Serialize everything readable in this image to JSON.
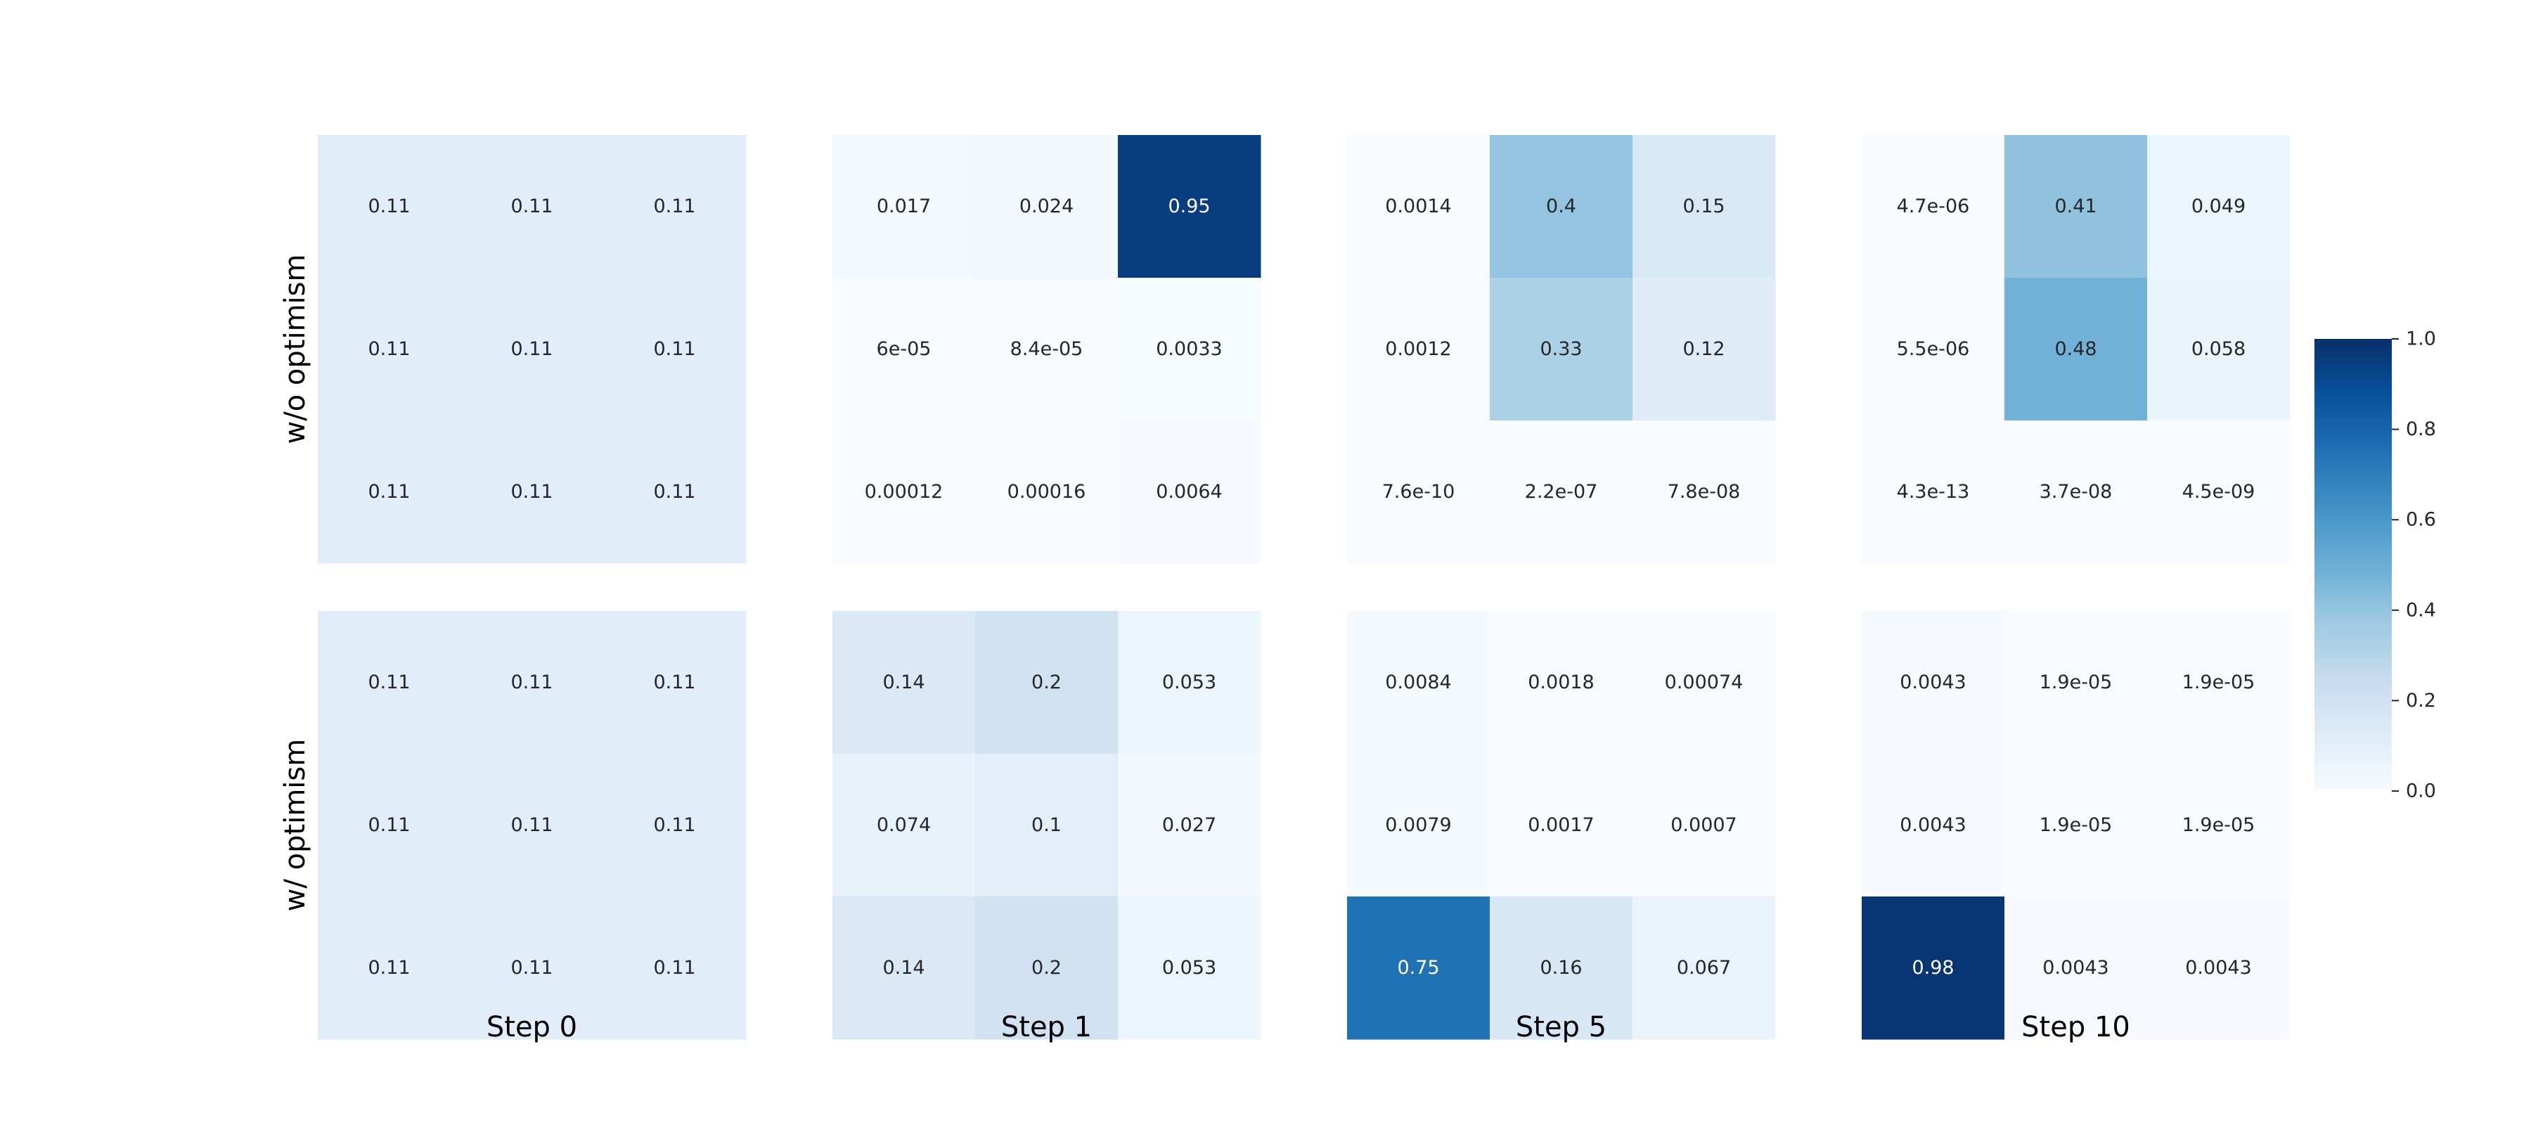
{
  "chart_data": {
    "type": "heatmap",
    "colormap": "Blues",
    "value_range": [
      0,
      1
    ],
    "row_labels": [
      "w/o optimism",
      "w/ optimism"
    ],
    "column_labels": [
      "Step 0",
      "Step 1",
      "Step 5",
      "Step 10"
    ],
    "colorbar": {
      "ticks": [
        "0.0",
        "0.2",
        "0.4",
        "0.6",
        "0.8",
        "1.0"
      ],
      "placement": "right"
    },
    "panels": [
      {
        "row": 0,
        "col": 0,
        "values": [
          [
            0.11,
            0.11,
            0.11
          ],
          [
            0.11,
            0.11,
            0.11
          ],
          [
            0.11,
            0.11,
            0.11
          ]
        ],
        "labels": [
          [
            "0.11",
            "0.11",
            "0.11"
          ],
          [
            "0.11",
            "0.11",
            "0.11"
          ],
          [
            "0.11",
            "0.11",
            "0.11"
          ]
        ]
      },
      {
        "row": 0,
        "col": 1,
        "values": [
          [
            0.017,
            0.024,
            0.95
          ],
          [
            6e-05,
            8.4e-05,
            0.0033
          ],
          [
            0.00012,
            0.00016,
            0.0064
          ]
        ],
        "labels": [
          [
            "0.017",
            "0.024",
            "0.95"
          ],
          [
            "6e-05",
            "8.4e-05",
            "0.0033"
          ],
          [
            "0.00012",
            "0.00016",
            "0.0064"
          ]
        ]
      },
      {
        "row": 0,
        "col": 2,
        "values": [
          [
            0.0014,
            0.4,
            0.15
          ],
          [
            0.0012,
            0.33,
            0.12
          ],
          [
            7.6e-10,
            2.2e-07,
            7.8e-08
          ]
        ],
        "labels": [
          [
            "0.0014",
            "0.4",
            "0.15"
          ],
          [
            "0.0012",
            "0.33",
            "0.12"
          ],
          [
            "7.6e-10",
            "2.2e-07",
            "7.8e-08"
          ]
        ]
      },
      {
        "row": 0,
        "col": 3,
        "values": [
          [
            4.7e-06,
            0.41,
            0.049
          ],
          [
            5.5e-06,
            0.48,
            0.058
          ],
          [
            4.3e-13,
            3.7e-08,
            4.5e-09
          ]
        ],
        "labels": [
          [
            "4.7e-06",
            "0.41",
            "0.049"
          ],
          [
            "5.5e-06",
            "0.48",
            "0.058"
          ],
          [
            "4.3e-13",
            "3.7e-08",
            "4.5e-09"
          ]
        ]
      },
      {
        "row": 1,
        "col": 0,
        "values": [
          [
            0.11,
            0.11,
            0.11
          ],
          [
            0.11,
            0.11,
            0.11
          ],
          [
            0.11,
            0.11,
            0.11
          ]
        ],
        "labels": [
          [
            "0.11",
            "0.11",
            "0.11"
          ],
          [
            "0.11",
            "0.11",
            "0.11"
          ],
          [
            "0.11",
            "0.11",
            "0.11"
          ]
        ]
      },
      {
        "row": 1,
        "col": 1,
        "values": [
          [
            0.14,
            0.2,
            0.053
          ],
          [
            0.074,
            0.1,
            0.027
          ],
          [
            0.14,
            0.2,
            0.053
          ]
        ],
        "labels": [
          [
            "0.14",
            "0.2",
            "0.053"
          ],
          [
            "0.074",
            "0.1",
            "0.027"
          ],
          [
            "0.14",
            "0.2",
            "0.053"
          ]
        ]
      },
      {
        "row": 1,
        "col": 2,
        "values": [
          [
            0.0084,
            0.0018,
            0.00074
          ],
          [
            0.0079,
            0.0017,
            0.0007
          ],
          [
            0.75,
            0.16,
            0.067
          ]
        ],
        "labels": [
          [
            "0.0084",
            "0.0018",
            "0.00074"
          ],
          [
            "0.0079",
            "0.0017",
            "0.0007"
          ],
          [
            "0.75",
            "0.16",
            "0.067"
          ]
        ]
      },
      {
        "row": 1,
        "col": 3,
        "values": [
          [
            0.0043,
            1.9e-05,
            1.9e-05
          ],
          [
            0.0043,
            1.9e-05,
            1.9e-05
          ],
          [
            0.98,
            0.0043,
            0.0043
          ]
        ],
        "labels": [
          [
            "0.0043",
            "1.9e-05",
            "1.9e-05"
          ],
          [
            "0.0043",
            "1.9e-05",
            "1.9e-05"
          ],
          [
            "0.98",
            "0.0043",
            "0.0043"
          ]
        ]
      }
    ]
  }
}
